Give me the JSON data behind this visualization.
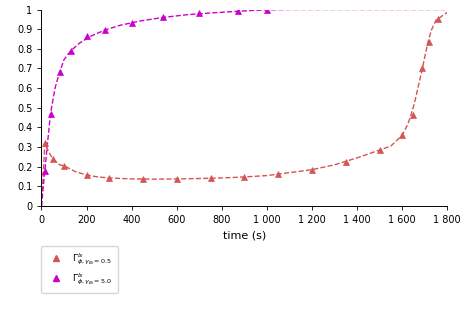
{
  "title": "",
  "xlabel": "time (s)",
  "ylabel": "",
  "xlim": [
    0,
    1800
  ],
  "ylim": [
    0,
    1.0
  ],
  "ytick_vals": [
    0,
    0.1,
    0.2,
    0.3,
    0.4,
    0.5,
    0.6,
    0.7,
    0.8,
    0.9,
    1.0
  ],
  "ytick_labels": [
    "0",
    "0.1",
    "0.2",
    "0.3",
    "0.4",
    "0.5",
    "0.6",
    "0.7",
    "0.8",
    "0.9",
    "1"
  ],
  "xtick_vals": [
    0,
    200,
    400,
    600,
    800,
    1000,
    1200,
    1400,
    1600,
    1800
  ],
  "xtick_labels": [
    "0",
    "200",
    "400",
    "600",
    "800",
    "1 000",
    "1 200",
    "1 400",
    "1 600",
    "1 800"
  ],
  "color_red": "#d45555",
  "color_magenta": "#cc00cc",
  "legend_label_red": "$\\Gamma^{ls}_{\\phi,\\gamma_{Bi}=0.5}$",
  "legend_label_magenta": "$\\Gamma^{ls}_{\\phi,\\gamma_{Bi}=5.0}$",
  "red_x": [
    0,
    15,
    30,
    50,
    80,
    100,
    150,
    200,
    250,
    300,
    400,
    500,
    600,
    700,
    800,
    900,
    1000,
    1100,
    1200,
    1300,
    1400,
    1500,
    1550,
    1600,
    1625,
    1640,
    1655,
    1665,
    1675,
    1690,
    1700,
    1715,
    1730,
    1750,
    1800
  ],
  "red_y": [
    0.0,
    0.32,
    0.28,
    0.24,
    0.21,
    0.205,
    0.175,
    0.158,
    0.148,
    0.143,
    0.138,
    0.137,
    0.138,
    0.14,
    0.143,
    0.148,
    0.155,
    0.17,
    0.185,
    0.21,
    0.245,
    0.285,
    0.305,
    0.36,
    0.415,
    0.465,
    0.525,
    0.575,
    0.625,
    0.7,
    0.755,
    0.835,
    0.895,
    0.945,
    0.985
  ],
  "magenta_x": [
    0,
    8,
    15,
    25,
    40,
    60,
    80,
    100,
    130,
    170,
    220,
    280,
    350,
    440,
    540,
    650,
    760,
    870,
    950,
    1000,
    1100,
    1300,
    1600,
    1800
  ],
  "magenta_y": [
    0.0,
    0.1,
    0.18,
    0.3,
    0.47,
    0.6,
    0.68,
    0.745,
    0.79,
    0.83,
    0.865,
    0.895,
    0.92,
    0.942,
    0.96,
    0.974,
    0.983,
    0.991,
    0.996,
    0.998,
    1.0,
    1.0,
    1.0,
    1.0
  ],
  "red_markers_x": [
    15,
    50,
    100,
    200,
    300,
    450,
    600,
    750,
    900,
    1050,
    1200,
    1350,
    1500,
    1600,
    1650,
    1690,
    1720,
    1760
  ],
  "red_markers_y": [
    0.32,
    0.24,
    0.205,
    0.158,
    0.143,
    0.137,
    0.138,
    0.141,
    0.148,
    0.163,
    0.185,
    0.225,
    0.285,
    0.36,
    0.465,
    0.7,
    0.835,
    0.95
  ],
  "magenta_markers_x": [
    15,
    40,
    80,
    130,
    200,
    280,
    400,
    540,
    700,
    870,
    1000
  ],
  "magenta_markers_y": [
    0.18,
    0.47,
    0.68,
    0.79,
    0.865,
    0.895,
    0.932,
    0.96,
    0.98,
    0.991,
    0.998
  ]
}
